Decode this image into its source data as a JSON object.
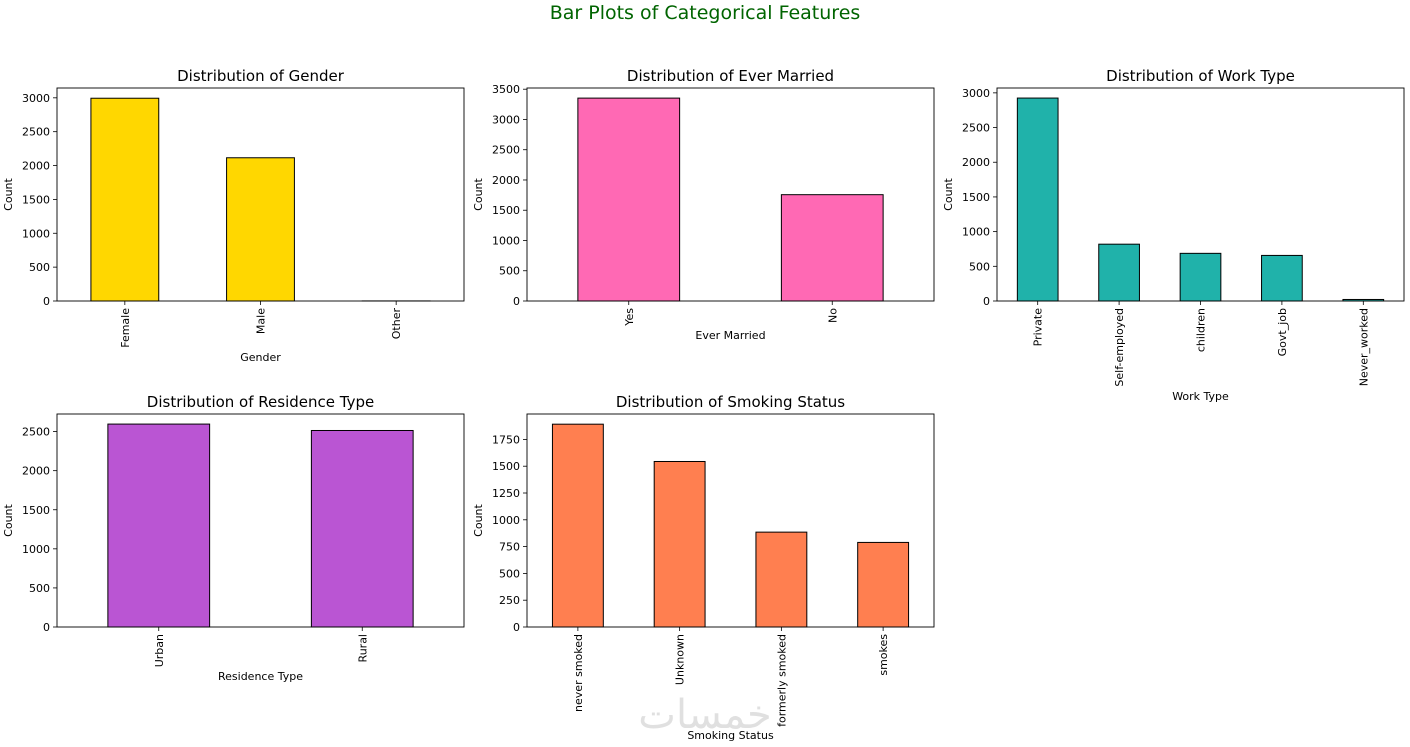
{
  "figure": {
    "suptitle": "Bar Plots of Categorical Features",
    "suptitle_color": "#006400",
    "watermark": "خمسات"
  },
  "chart_data": [
    {
      "type": "bar",
      "title": "Distribution of Gender",
      "xlabel": "Gender",
      "ylabel": "Count",
      "categories": [
        "Female",
        "Male",
        "Other"
      ],
      "values": [
        2994,
        2115,
        1
      ],
      "ylim": [
        0,
        3145
      ],
      "yticks": [
        0,
        500,
        1000,
        1500,
        2000,
        2500,
        3000
      ],
      "color": "#FFD700",
      "rotation": 90,
      "grid": false
    },
    {
      "type": "bar",
      "title": "Distribution of Ever Married",
      "xlabel": "Ever Married",
      "ylabel": "Count",
      "categories": [
        "Yes",
        "No"
      ],
      "values": [
        3353,
        1757
      ],
      "ylim": [
        0,
        3520
      ],
      "yticks": [
        0,
        500,
        1000,
        1500,
        2000,
        2500,
        3000,
        3500
      ],
      "color": "#FF69B4",
      "rotation": 90,
      "grid": false
    },
    {
      "type": "bar",
      "title": "Distribution of Work Type",
      "xlabel": "Work Type",
      "ylabel": "Count",
      "categories": [
        "Private",
        "Self-employed",
        "children",
        "Govt_job",
        "Never_worked"
      ],
      "values": [
        2925,
        819,
        687,
        657,
        22
      ],
      "ylim": [
        0,
        3070
      ],
      "yticks": [
        0,
        500,
        1000,
        1500,
        2000,
        2500,
        3000
      ],
      "color": "#20B2AA",
      "rotation": 90,
      "grid": false
    },
    {
      "type": "bar",
      "title": "Distribution of Residence Type",
      "xlabel": "Residence Type",
      "ylabel": "Count",
      "categories": [
        "Urban",
        "Rural"
      ],
      "values": [
        2596,
        2514
      ],
      "ylim": [
        0,
        2725
      ],
      "yticks": [
        0,
        500,
        1000,
        1500,
        2000,
        2500
      ],
      "color": "#BA55D3",
      "rotation": 90,
      "grid": false
    },
    {
      "type": "bar",
      "title": "Distribution of Smoking Status",
      "xlabel": "Smoking Status",
      "ylabel": "Count",
      "categories": [
        "never smoked",
        "Unknown",
        "formerly smoked",
        "smokes"
      ],
      "values": [
        1892,
        1544,
        885,
        789
      ],
      "ylim": [
        0,
        1987
      ],
      "yticks": [
        0,
        250,
        500,
        750,
        1000,
        1250,
        1500,
        1750
      ],
      "color": "#FF7F50",
      "rotation": 90,
      "grid": false
    }
  ]
}
